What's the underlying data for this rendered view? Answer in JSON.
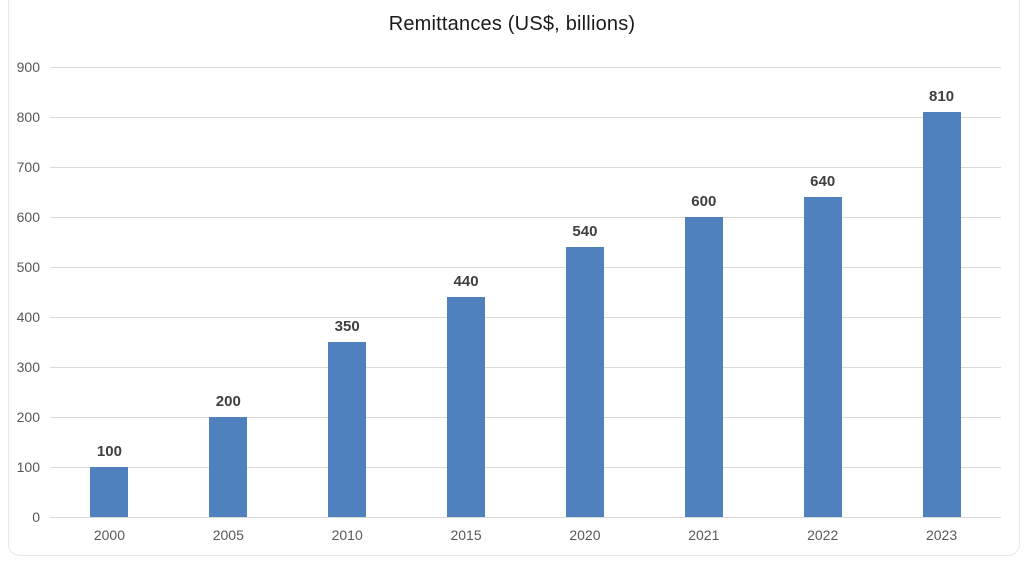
{
  "chart_data": {
    "type": "bar",
    "title": "Remittances (US$, billions)",
    "categories": [
      "2000",
      "2005",
      "2010",
      "2015",
      "2020",
      "2021",
      "2022",
      "2023"
    ],
    "values": [
      100,
      200,
      350,
      440,
      540,
      600,
      640,
      810
    ],
    "xlabel": "",
    "ylabel": "",
    "ylim": [
      0,
      900
    ],
    "ytick_step": 100,
    "grid": true,
    "legend": false,
    "data_labels": [
      "100",
      "200",
      "350",
      "440",
      "540",
      "600",
      "640",
      "810"
    ],
    "colors": {
      "bar": "#4e81bd",
      "gridline": "#d9d9d9",
      "axis_text": "#595959",
      "data_label_text": "#3f3f3f",
      "title_text": "#1a1a1a"
    }
  }
}
